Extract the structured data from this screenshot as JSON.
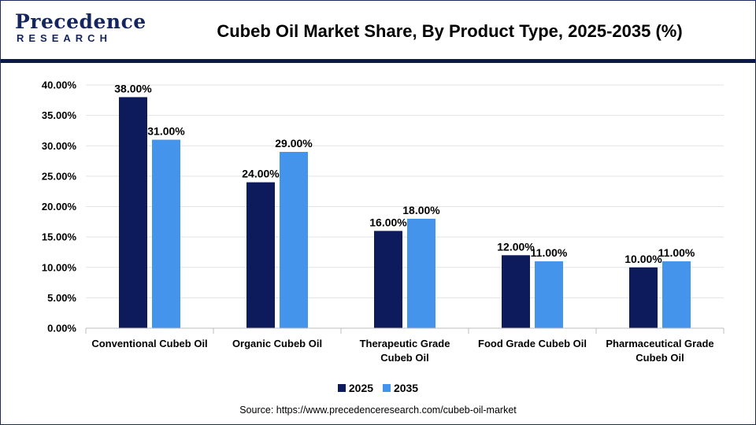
{
  "brand": {
    "logo_top": "Precedence",
    "logo_bottom": "RESEARCH"
  },
  "header": {
    "title": "Cubeb Oil Market Share, By Product Type, 2025-2035 (%)"
  },
  "source": "Source: https://www.precedenceresearch.com/cubeb-oil-market",
  "colors": {
    "series_2025": "#0d1a5c",
    "series_2035": "#4594ec",
    "header_rule": "#0b1a4a"
  },
  "chart_data": {
    "type": "bar",
    "title": "Cubeb Oil Market Share, By Product Type, 2025-2035 (%)",
    "xlabel": "",
    "ylabel": "",
    "ylim": [
      0,
      40
    ],
    "yticks": [
      "0.00%",
      "5.00%",
      "10.00%",
      "15.00%",
      "20.00%",
      "25.00%",
      "30.00%",
      "35.00%",
      "40.00%"
    ],
    "grid": true,
    "legend": "bottom-center",
    "categories": [
      [
        "Conventional Cubeb Oil"
      ],
      [
        "Organic Cubeb Oil"
      ],
      [
        "Therapeutic Grade",
        "Cubeb Oil"
      ],
      [
        "Food Grade Cubeb Oil"
      ],
      [
        "Pharmaceutical Grade",
        "Cubeb Oil"
      ]
    ],
    "series": [
      {
        "name": "2025",
        "values": [
          38,
          24,
          16,
          12,
          10
        ],
        "labels": [
          "38.00%",
          "24.00%",
          "16.00%",
          "12.00%",
          "10.00%"
        ]
      },
      {
        "name": "2035",
        "values": [
          31,
          29,
          18,
          11,
          11
        ],
        "labels": [
          "31.00%",
          "29.00%",
          "18.00%",
          "11.00%",
          "11.00%"
        ]
      }
    ]
  }
}
